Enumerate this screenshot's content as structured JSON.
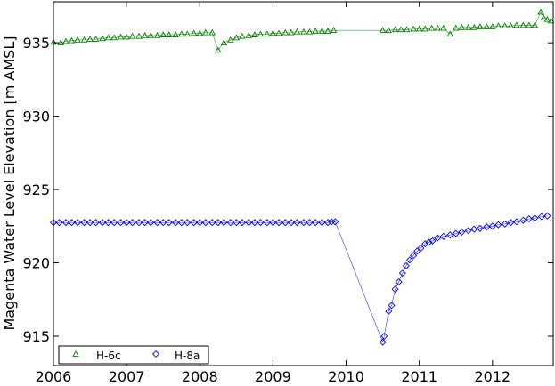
{
  "chart_data": {
    "type": "scatter",
    "title": "",
    "xlabel": "",
    "ylabel": "Magenta Water Level Elevation [m AMSL]",
    "xlim": [
      2006,
      2012.83
    ],
    "ylim": [
      913.0,
      937.8
    ],
    "xticks": [
      2006,
      2007,
      2008,
      2009,
      2010,
      2011,
      2012
    ],
    "yticks": [
      915,
      920,
      925,
      930,
      935
    ],
    "grid": false,
    "legend": {
      "placement": "bottom-left",
      "entries": [
        "H-6c",
        "H-8a"
      ]
    },
    "series": [
      {
        "name": "H-6c",
        "marker": "triangle",
        "color": "#008000",
        "x": [
          2006.0,
          2006.1,
          2006.17,
          2006.25,
          2006.33,
          2006.42,
          2006.5,
          2006.58,
          2006.67,
          2006.75,
          2006.83,
          2006.92,
          2007.0,
          2007.08,
          2007.17,
          2007.25,
          2007.33,
          2007.42,
          2007.5,
          2007.58,
          2007.67,
          2007.75,
          2007.83,
          2007.92,
          2008.0,
          2008.08,
          2008.17,
          2008.25,
          2008.33,
          2008.42,
          2008.5,
          2008.58,
          2008.67,
          2008.75,
          2008.83,
          2008.92,
          2009.0,
          2009.08,
          2009.17,
          2009.25,
          2009.33,
          2009.42,
          2009.5,
          2009.58,
          2009.67,
          2009.75,
          2009.83,
          2010.5,
          2010.58,
          2010.67,
          2010.75,
          2010.83,
          2010.92,
          2011.0,
          2011.08,
          2011.17,
          2011.25,
          2011.33,
          2011.42,
          2011.5,
          2011.58,
          2011.67,
          2011.75,
          2011.83,
          2011.92,
          2012.0,
          2012.08,
          2012.17,
          2012.25,
          2012.33,
          2012.42,
          2012.5,
          2012.58,
          2012.66,
          2012.7,
          2012.75,
          2012.8
        ],
        "values": [
          935.05,
          935.0,
          935.1,
          935.15,
          935.2,
          935.2,
          935.25,
          935.25,
          935.3,
          935.35,
          935.35,
          935.4,
          935.4,
          935.45,
          935.45,
          935.5,
          935.5,
          935.5,
          935.55,
          935.55,
          935.55,
          935.6,
          935.6,
          935.65,
          935.65,
          935.7,
          935.7,
          934.5,
          935.0,
          935.2,
          935.35,
          935.45,
          935.5,
          935.55,
          935.6,
          935.6,
          935.65,
          935.65,
          935.7,
          935.7,
          935.75,
          935.75,
          935.75,
          935.8,
          935.8,
          935.8,
          935.85,
          935.85,
          935.85,
          935.9,
          935.9,
          935.9,
          935.95,
          935.95,
          935.95,
          936.0,
          936.0,
          936.0,
          935.6,
          936.0,
          936.05,
          936.05,
          936.05,
          936.1,
          936.1,
          936.1,
          936.15,
          936.15,
          936.15,
          936.2,
          936.2,
          936.2,
          936.2,
          937.1,
          936.7,
          936.6,
          936.5
        ]
      },
      {
        "name": "H-8a",
        "marker": "diamond",
        "color": "#0000ff",
        "x": [
          2006.0,
          2006.08,
          2006.17,
          2006.25,
          2006.33,
          2006.42,
          2006.5,
          2006.58,
          2006.67,
          2006.75,
          2006.83,
          2006.92,
          2007.0,
          2007.08,
          2007.17,
          2007.25,
          2007.33,
          2007.42,
          2007.5,
          2007.58,
          2007.67,
          2007.75,
          2007.83,
          2007.92,
          2008.0,
          2008.08,
          2008.17,
          2008.25,
          2008.33,
          2008.42,
          2008.5,
          2008.58,
          2008.67,
          2008.75,
          2008.83,
          2008.92,
          2009.0,
          2009.08,
          2009.17,
          2009.25,
          2009.33,
          2009.42,
          2009.5,
          2009.58,
          2009.67,
          2009.75,
          2009.8,
          2009.85,
          2010.5,
          2010.52,
          2010.58,
          2010.62,
          2010.67,
          2010.72,
          2010.77,
          2010.82,
          2010.87,
          2010.92,
          2010.97,
          2011.02,
          2011.08,
          2011.13,
          2011.18,
          2011.25,
          2011.33,
          2011.42,
          2011.5,
          2011.58,
          2011.67,
          2011.75,
          2011.83,
          2011.92,
          2012.0,
          2012.08,
          2012.17,
          2012.25,
          2012.33,
          2012.42,
          2012.5,
          2012.58,
          2012.67,
          2012.75
        ],
        "values": [
          922.75,
          922.75,
          922.75,
          922.75,
          922.75,
          922.75,
          922.75,
          922.75,
          922.75,
          922.75,
          922.75,
          922.75,
          922.75,
          922.75,
          922.75,
          922.75,
          922.75,
          922.75,
          922.75,
          922.75,
          922.75,
          922.75,
          922.75,
          922.75,
          922.75,
          922.75,
          922.75,
          922.75,
          922.75,
          922.75,
          922.75,
          922.75,
          922.75,
          922.75,
          922.75,
          922.75,
          922.75,
          922.75,
          922.75,
          922.75,
          922.75,
          922.75,
          922.75,
          922.75,
          922.75,
          922.75,
          922.8,
          922.8,
          914.6,
          915.0,
          916.7,
          917.1,
          918.2,
          918.7,
          919.3,
          919.8,
          920.2,
          920.5,
          920.8,
          921.0,
          921.3,
          921.4,
          921.5,
          921.7,
          921.8,
          921.9,
          922.0,
          922.1,
          922.2,
          922.3,
          922.35,
          922.45,
          922.5,
          922.6,
          922.65,
          922.75,
          922.8,
          922.9,
          923.0,
          923.05,
          923.15,
          923.2
        ]
      }
    ]
  }
}
